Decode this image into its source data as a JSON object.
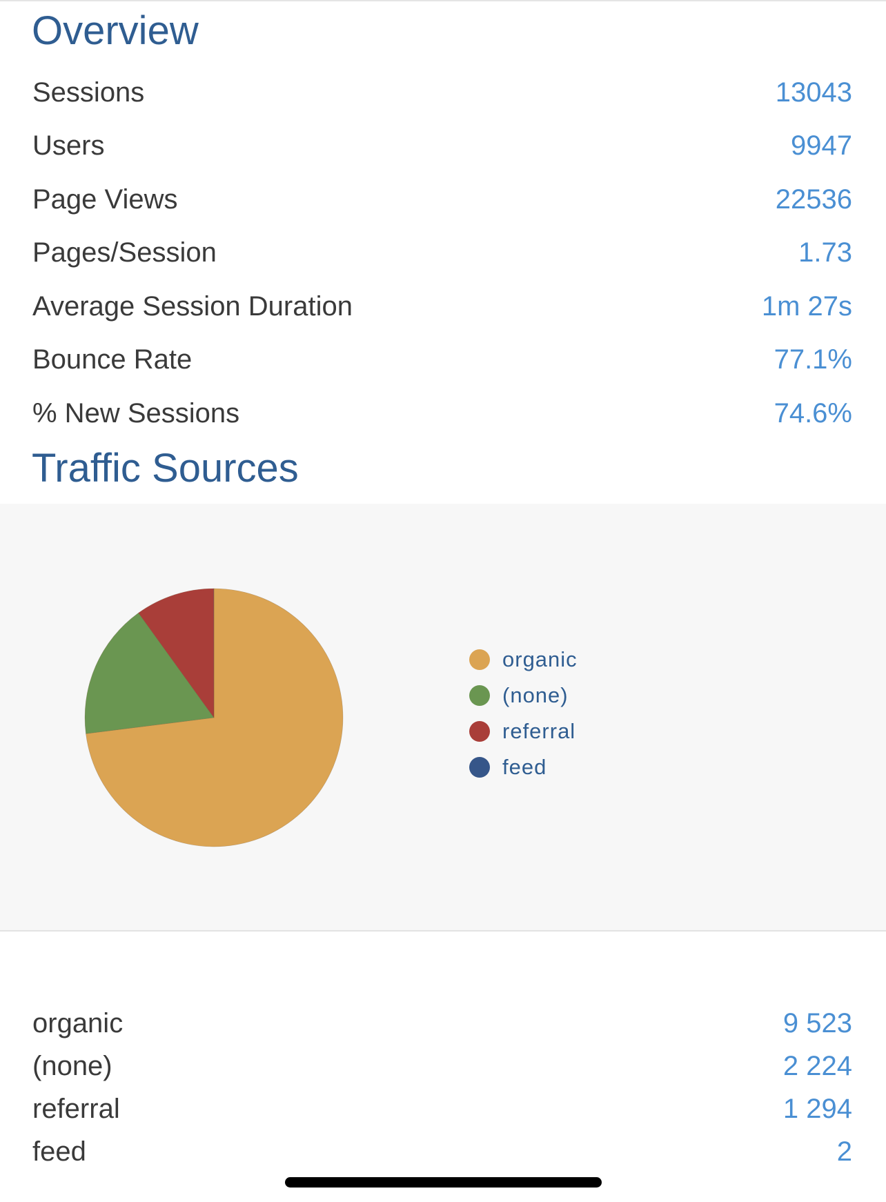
{
  "overview": {
    "title": "Overview",
    "metrics": [
      {
        "label": "Sessions",
        "value": "13043"
      },
      {
        "label": "Users",
        "value": "9947"
      },
      {
        "label": "Page Views",
        "value": "22536"
      },
      {
        "label": "Pages/Session",
        "value": "1.73"
      },
      {
        "label": "Average Session Duration",
        "value": "1m 27s"
      },
      {
        "label": "Bounce Rate",
        "value": "77.1%"
      },
      {
        "label": "% New Sessions",
        "value": "74.6%"
      }
    ]
  },
  "traffic": {
    "title": "Traffic Sources",
    "sources": [
      {
        "label": "organic",
        "value": "9 523"
      },
      {
        "label": "(none)",
        "value": "2 224"
      },
      {
        "label": "referral",
        "value": "1 294"
      },
      {
        "label": "feed",
        "value": "2"
      }
    ]
  },
  "chart_data": {
    "type": "pie",
    "categories": [
      "organic",
      "(none)",
      "referral",
      "feed"
    ],
    "values": [
      9523,
      2224,
      1294,
      2
    ],
    "colors": [
      "#dba453",
      "#6a9651",
      "#a93e39",
      "#365689"
    ],
    "legend": "right"
  },
  "colors": {
    "title": "#2f5d91",
    "value": "#4a8fd3",
    "label": "#3a3a3a",
    "panel": "#f7f7f7"
  }
}
